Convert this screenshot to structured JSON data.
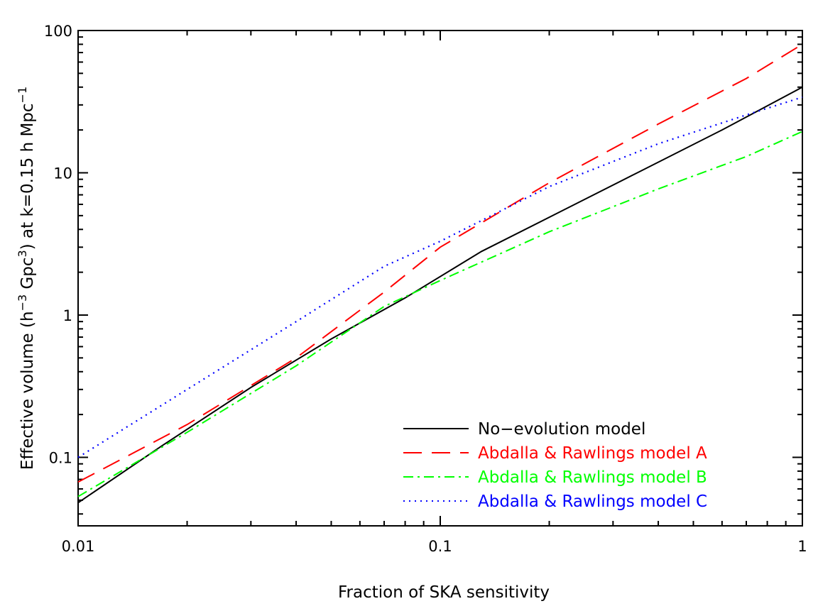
{
  "chart_data": {
    "type": "line",
    "title": "",
    "xlabel": "Fraction of SKA sensitivity",
    "ylabel": {
      "prefix": "Effective volume (h",
      "sup1": "−3",
      "mid": " Gpc",
      "sup2": "3",
      "rest": ") at k=0.15 h Mpc",
      "sup3": "−1"
    },
    "xscale": "log",
    "yscale": "log",
    "xlim": [
      0.01,
      1
    ],
    "ylim": [
      0.033,
      100
    ],
    "x_tick_labels": [
      {
        "value": 0.01,
        "label": "0.01"
      },
      {
        "value": 0.1,
        "label": "0.1"
      },
      {
        "value": 1,
        "label": "1"
      }
    ],
    "y_tick_labels": [
      {
        "value": 0.1,
        "label": "0.1"
      },
      {
        "value": 1,
        "label": "1"
      },
      {
        "value": 10,
        "label": "10"
      },
      {
        "value": 100,
        "label": "100"
      }
    ],
    "legend_position": "bottom-right",
    "series": [
      {
        "name": "No−evolution model",
        "color": "#000000",
        "dash": "solid",
        "x": [
          0.01,
          0.017,
          0.03,
          0.05,
          0.08,
          0.13,
          0.22,
          0.35,
          0.6,
          1.0
        ],
        "y": [
          0.048,
          0.12,
          0.31,
          0.68,
          1.32,
          2.8,
          5.5,
          10,
          20,
          40
        ]
      },
      {
        "name": "Abdalla & Rawlings model A",
        "color": "#ff0000",
        "dash": "dashed",
        "x": [
          0.01,
          0.02,
          0.04,
          0.07,
          0.1,
          0.2,
          0.4,
          0.7,
          1.0
        ],
        "y": [
          0.067,
          0.17,
          0.5,
          1.45,
          3.0,
          8.5,
          22,
          46,
          80
        ]
      },
      {
        "name": "Abdalla & Rawlings model B",
        "color": "#00ff00",
        "dash": "dashdot",
        "x": [
          0.01,
          0.02,
          0.04,
          0.07,
          0.1,
          0.2,
          0.4,
          0.7,
          1.0
        ],
        "y": [
          0.053,
          0.15,
          0.44,
          1.15,
          1.75,
          3.85,
          7.7,
          13.0,
          19.5
        ]
      },
      {
        "name": "Abdalla & Rawlings model C",
        "color": "#0000ff",
        "dash": "dotted",
        "x": [
          0.01,
          0.02,
          0.04,
          0.07,
          0.1,
          0.2,
          0.4,
          0.7,
          1.0
        ],
        "y": [
          0.1,
          0.3,
          0.9,
          2.2,
          3.3,
          8.0,
          16.0,
          25.5,
          34.0
        ]
      }
    ]
  }
}
